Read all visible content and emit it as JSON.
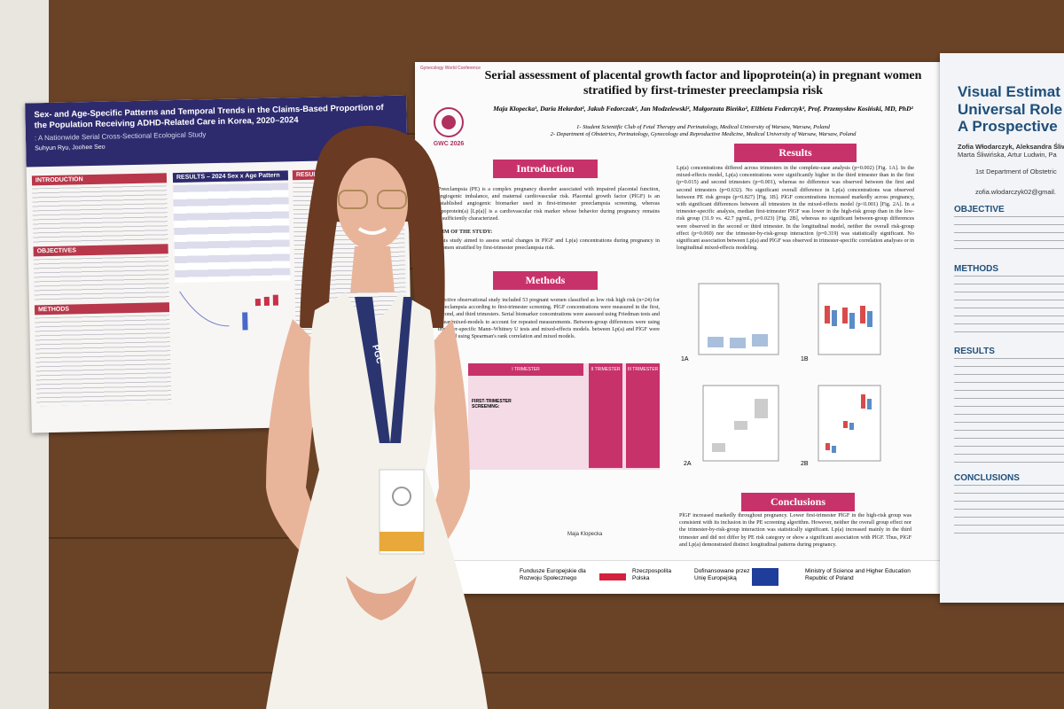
{
  "left_poster": {
    "title": "Sex- and Age-Specific Patterns and Temporal Trends in the Claims-Based Proportion of the Population Receiving ADHD-Related Care in Korea, 2020–2024",
    "subtitle": ": A Nationwide Serial Cross-Sectional Ecological Study",
    "authors": "Suhyun Ryu, Joohee Seo",
    "sections": [
      "INTRODUCTION",
      "OBJECTIVES",
      "METHODS"
    ],
    "results_headings": [
      "RESULTS – 2024 Sex x Age Pattern",
      "RESULTS –"
    ]
  },
  "center_poster": {
    "conference": "Gynecology World Conference",
    "logo": "GWC 2026",
    "title": "Serial assessment of placental growth factor and lipoprotein(a) in pregnant women stratified by first-trimester preeclampsia risk",
    "authors": "Maja Klopecka¹, Daria Hełardot², Jakub Fedorczak², Jan Modzelewski², Małgorzata Bieńko², Elżbieta Federczyk², Prof. Przemysław Kosiński, MD, PhD²",
    "affiliations": [
      "1- Student Scientific Club of Fetal Therapy and Perinatology, Medical University of Warsaw, Warsaw, Poland",
      "2- Department of Obstetrics, Perinatology, Gynecology and Reproductive Medicine, Medical University of Warsaw, Warsaw, Poland"
    ],
    "introduction": {
      "heading": "Introduction",
      "text": "Preeclampsia (PE) is a complex pregnancy disorder associated with impaired placental function, angiogenic imbalance, and maternal cardiovascular risk. Placental growth factor (PlGF) is an established angiogenic biomarker used in first-trimester preeclampsia screening, whereas lipoprotein(a) [Lp(a)] is a cardiovascular risk marker whose behavior during pregnancy remains insufficiently characterized.",
      "aim_heading": "AIM OF THE STUDY:",
      "aim": "This study aimed to assess serial changes in PlGF and Lp(a) concentrations during pregnancy in women stratified by first-trimester preeclampsia risk."
    },
    "methods": {
      "heading": "Methods",
      "text": "spective observational study included 53 pregnant women classified as low risk high risk (n=24) for preeclampsia according to first-trimester screening. PlGF concentrations were measured in the first, second, and third trimesters. Serial biomarker concentrations were assessed using Friedman tests and linear mixed-models to account for repeated measurements. Between-group differences were using trimester-specific Mann–Whitney U tests and mixed-effects models. between Lp(a) and PlGF were assessed using Spearman's rank correlation and mixed models."
    },
    "results": {
      "heading": "Results",
      "text": "Lp(a) concentrations differed across trimesters in the complete-case analysis (p=0.002) [Fig. 1A]. In the mixed-effects model, Lp(a) concentrations were significantly higher in the third trimester than in the first (p=0.015) and second trimesters (p=0.001), whereas no difference was observed between the first and second trimesters (p=0.632). No significant overall difference in Lp(a) concentrations was observed between PE risk groups (p=0.827) [Fig. 1B]. PlGF concentrations increased markedly across pregnancy, with significant differences between all trimesters in the mixed-effects model (p<0.001) [Fig. 2A]. In a trimester-specific analysis, median first-trimester PlGF was lower in the high-risk group than in the low-risk group (31.9 vs. 42.7 pg/mL, p=0.023) [Fig. 2B], whereas no significant between-group differences were observed in the second or third trimester. In the longitudinal model, neither the overall risk-group effect (p=0.060) nor the trimester-by-risk-group interaction (p=0.319) was statistically significant. No significant association between Lp(a) and PlGF was observed in trimester-specific correlation analyses or in longitudinal mixed-effects modeling."
    },
    "conclusions": {
      "heading": "Conclusions",
      "text": "PlGF increased markedly throughout pregnancy. Lower first-trimester PlGF in the high-risk group was consistent with its inclusion in the PE screening algorithm. However, neither the overall group effect nor the trimester-by-risk-group interaction was statistically significant. Lp(a) increased mainly in the third trimester and did not differ by PE risk category or show a significant association with PlGF. Thus, PlGF and Lp(a) demonstrated distinct longitudinal patterns during pregnancy."
    },
    "table_headers": [
      "I TRIMESTER",
      "II TRIMESTER",
      "III TRIMESTER"
    ],
    "screening_label": "FIRST-TRIMESTER SCREENING:",
    "figure_labels": [
      "1A",
      "1B",
      "2A",
      "2B"
    ],
    "contact": "Maja Klopecka",
    "funders": [
      "Fundusze Europejskie dla Rozwoju Społecznego",
      "Rzeczpospolita Polska",
      "Dofinansowane przez Unię Europejską",
      "Ministry of Science and Higher Education Republic of Poland"
    ]
  },
  "right_poster": {
    "title_lines": [
      "Visual Estimat",
      "Universal Role",
      "A Prospective"
    ],
    "authors": [
      "Zofia Włodarczyk, Aleksandra Śliw",
      "Marta Śliwińska, Artur Ludwin, Pa"
    ],
    "affiliation": "1st Department of Obstetric",
    "email": "zofia.wlodarczyk02@gmail.",
    "sections": [
      "OBJECTIVE",
      "METHODS",
      "RESULTS",
      "CONCLUSIONS"
    ]
  },
  "lanyard": "PGC"
}
